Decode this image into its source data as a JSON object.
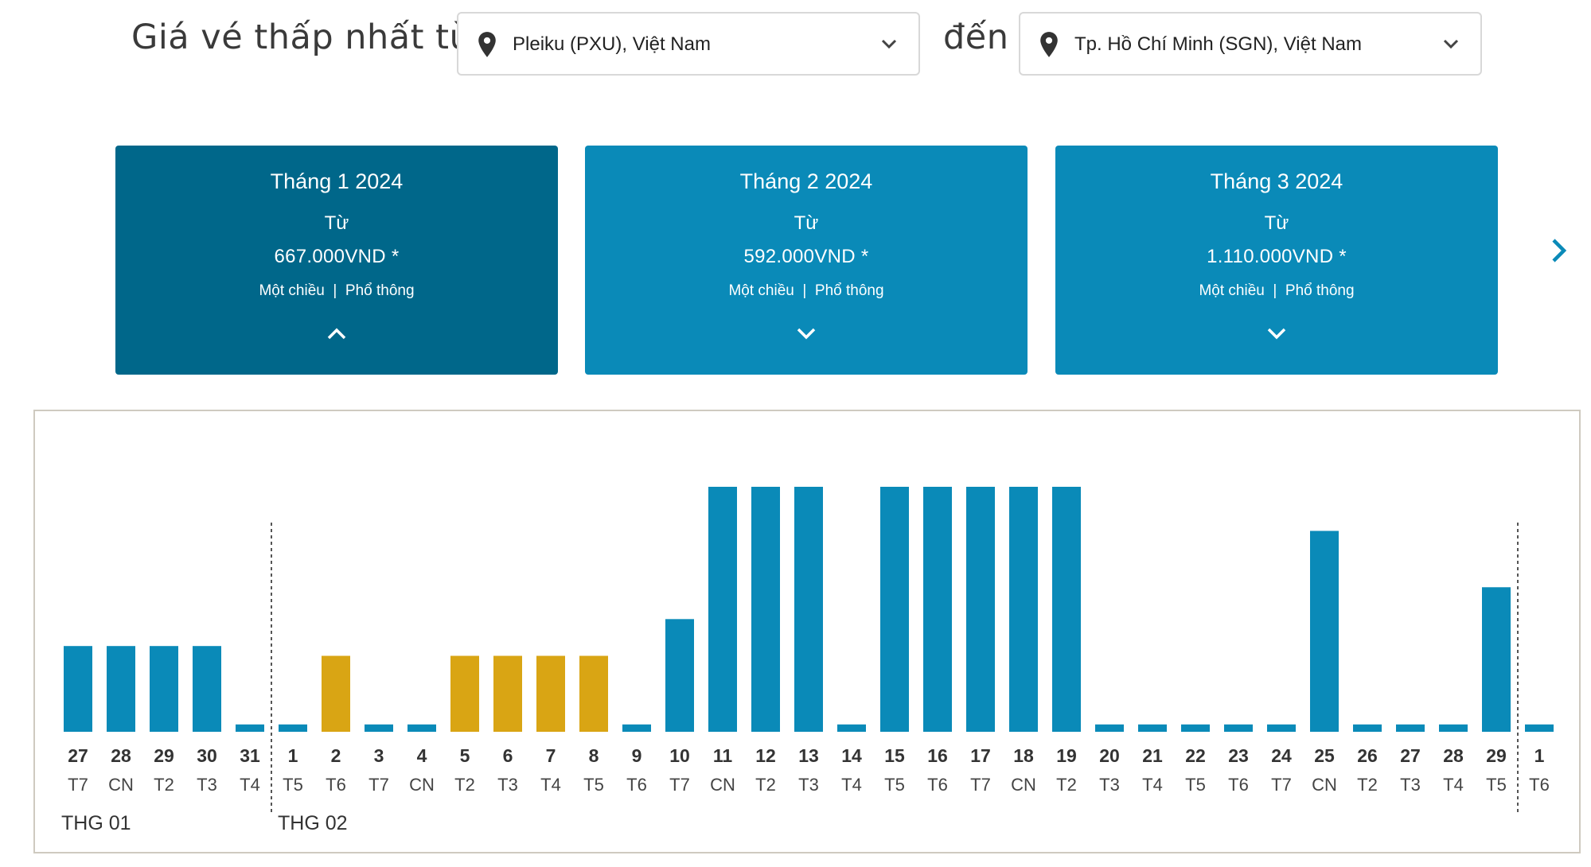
{
  "header": {
    "heading_from": "Giá vé thấp nhất từ",
    "heading_to": "đến",
    "origin": {
      "value": "Pleiku (PXU), Việt Nam",
      "icon": "location-pin-icon"
    },
    "destination": {
      "value": "Tp. Hồ Chí Minh (SGN), Việt Nam",
      "icon": "location-pin-icon"
    }
  },
  "months": [
    {
      "title": "Tháng 1 2024",
      "from_label": "Từ",
      "price": "667.000VND  *",
      "trip_type": "Một chiều",
      "cabin": "Phổ thông",
      "separator": "|",
      "state": "active",
      "arrow": "chevron-up-icon"
    },
    {
      "title": "Tháng 2 2024",
      "from_label": "Từ",
      "price": "592.000VND  *",
      "trip_type": "Một chiều",
      "cabin": "Phổ thông",
      "separator": "|",
      "state": "inactive",
      "arrow": "chevron-down-icon"
    },
    {
      "title": "Tháng 3 2024",
      "from_label": "Từ",
      "price": "1.110.000VND  *",
      "trip_type": "Một chiều",
      "cabin": "Phổ thông",
      "separator": "|",
      "state": "inactive",
      "arrow": "chevron-down-icon"
    }
  ],
  "colors": {
    "header_active": "#00678a",
    "header_inactive": "#0a8ab8",
    "bar_regular": "#0a8ab8",
    "bar_lowest": "#d9a514"
  },
  "chart_data": {
    "type": "bar",
    "month_labels": [
      {
        "text": "THG 01",
        "start_index": 0
      },
      {
        "text": "THG 02",
        "start_index": 5
      }
    ],
    "days": [
      {
        "day": "27",
        "weekday": "T7",
        "level": 0.35,
        "lowest": false
      },
      {
        "day": "28",
        "weekday": "CN",
        "level": 0.35,
        "lowest": false
      },
      {
        "day": "29",
        "weekday": "T2",
        "level": 0.35,
        "lowest": false
      },
      {
        "day": "30",
        "weekday": "T3",
        "level": 0.35,
        "lowest": false
      },
      {
        "day": "31",
        "weekday": "T4",
        "level": 0.03,
        "lowest": false
      },
      {
        "day": "1",
        "weekday": "T5",
        "level": 0.03,
        "lowest": false
      },
      {
        "day": "2",
        "weekday": "T6",
        "level": 0.31,
        "lowest": true
      },
      {
        "day": "3",
        "weekday": "T7",
        "level": 0.03,
        "lowest": false
      },
      {
        "day": "4",
        "weekday": "CN",
        "level": 0.03,
        "lowest": false
      },
      {
        "day": "5",
        "weekday": "T2",
        "level": 0.31,
        "lowest": true
      },
      {
        "day": "6",
        "weekday": "T3",
        "level": 0.31,
        "lowest": true
      },
      {
        "day": "7",
        "weekday": "T4",
        "level": 0.31,
        "lowest": true
      },
      {
        "day": "8",
        "weekday": "T5",
        "level": 0.31,
        "lowest": true
      },
      {
        "day": "9",
        "weekday": "T6",
        "level": 0.03,
        "lowest": false
      },
      {
        "day": "10",
        "weekday": "T7",
        "level": 0.46,
        "lowest": false
      },
      {
        "day": "11",
        "weekday": "CN",
        "level": 1.0,
        "lowest": false
      },
      {
        "day": "12",
        "weekday": "T2",
        "level": 1.0,
        "lowest": false
      },
      {
        "day": "13",
        "weekday": "T3",
        "level": 1.0,
        "lowest": false
      },
      {
        "day": "14",
        "weekday": "T4",
        "level": 0.03,
        "lowest": false
      },
      {
        "day": "15",
        "weekday": "T5",
        "level": 1.0,
        "lowest": false
      },
      {
        "day": "16",
        "weekday": "T6",
        "level": 1.0,
        "lowest": false
      },
      {
        "day": "17",
        "weekday": "T7",
        "level": 1.0,
        "lowest": false
      },
      {
        "day": "18",
        "weekday": "CN",
        "level": 1.0,
        "lowest": false
      },
      {
        "day": "19",
        "weekday": "T2",
        "level": 1.0,
        "lowest": false
      },
      {
        "day": "20",
        "weekday": "T3",
        "level": 0.03,
        "lowest": false
      },
      {
        "day": "21",
        "weekday": "T4",
        "level": 0.03,
        "lowest": false
      },
      {
        "day": "22",
        "weekday": "T5",
        "level": 0.03,
        "lowest": false
      },
      {
        "day": "23",
        "weekday": "T6",
        "level": 0.03,
        "lowest": false
      },
      {
        "day": "24",
        "weekday": "T7",
        "level": 0.03,
        "lowest": false
      },
      {
        "day": "25",
        "weekday": "CN",
        "level": 0.82,
        "lowest": false
      },
      {
        "day": "26",
        "weekday": "T2",
        "level": 0.03,
        "lowest": false
      },
      {
        "day": "27",
        "weekday": "T3",
        "level": 0.03,
        "lowest": false
      },
      {
        "day": "28",
        "weekday": "T4",
        "level": 0.03,
        "lowest": false
      },
      {
        "day": "29",
        "weekday": "T5",
        "level": 0.59,
        "lowest": false
      },
      {
        "day": "1",
        "weekday": "T6",
        "level": 0.03,
        "lowest": false
      }
    ]
  }
}
